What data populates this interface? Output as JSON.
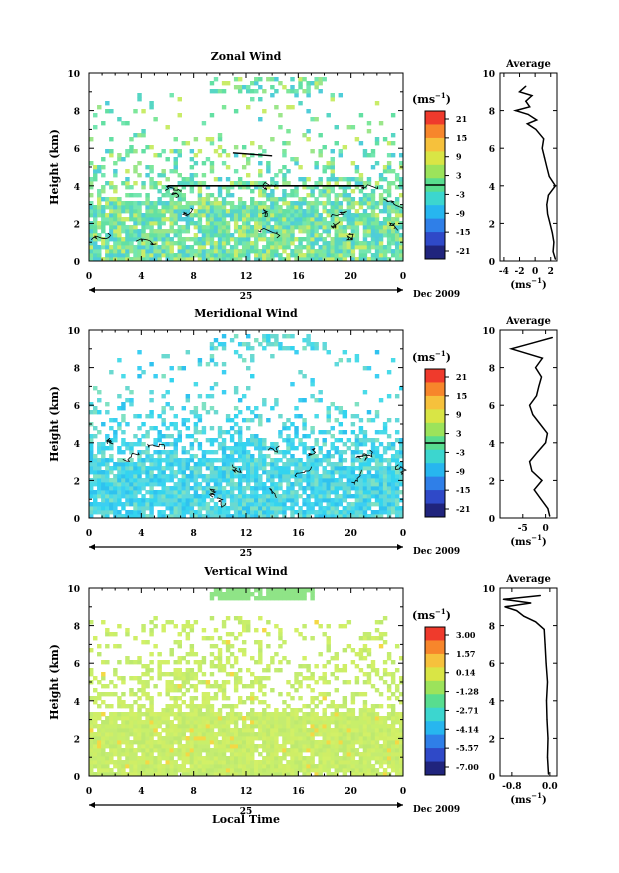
{
  "chart_data": [
    {
      "type": "heatmap",
      "title": "Zonal Wind",
      "ylabel": "Height (km)",
      "unit_label": "(ms",
      "unit_exp": "−1",
      "x_ticks": [
        "0",
        "4",
        "8",
        "12",
        "16",
        "20",
        "0"
      ],
      "day_label": "25",
      "month_label": "Dec 2009",
      "y_ticks": [
        "0",
        "2",
        "4",
        "6",
        "8",
        "10"
      ],
      "xlim": [
        0,
        24
      ],
      "ylim": [
        0,
        10
      ],
      "colorbar_ticks": [
        "21",
        "15",
        "9",
        "3",
        "-3",
        "-9",
        "-15",
        "-21"
      ],
      "zero_contour_height_km": 4.0,
      "average_profile": {
        "title": "Average",
        "xlabel": "(ms",
        "xlabel_exp": "−1",
        "x_ticks": [
          "-4",
          "-2",
          "0",
          "2"
        ],
        "x_tick_values": [
          -4,
          -2,
          0,
          2
        ],
        "xlim": [
          -4.5,
          2.8
        ],
        "y_ticks": [
          "0",
          "2",
          "4",
          "6",
          "8",
          "10"
        ],
        "heights_km": [
          0.1,
          0.5,
          1.0,
          1.5,
          2.0,
          2.5,
          3.0,
          3.5,
          4.0,
          4.5,
          5.0,
          5.5,
          6.0,
          6.5,
          7.0,
          7.3,
          7.5,
          7.8,
          8.0,
          8.2,
          8.5,
          8.8,
          9.0,
          9.3
        ],
        "values": [
          2.6,
          2.3,
          2.4,
          2.2,
          1.9,
          1.6,
          1.5,
          1.7,
          2.6,
          1.8,
          1.5,
          1.2,
          0.9,
          1.1,
          0.1,
          -1.0,
          0.2,
          -0.9,
          -2.5,
          -0.7,
          -1.2,
          -0.4,
          -2.0,
          -1.2
        ]
      }
    },
    {
      "type": "heatmap",
      "title": "Meridional Wind",
      "ylabel": "Height (km)",
      "unit_label": "(ms",
      "unit_exp": "−1",
      "x_ticks": [
        "0",
        "4",
        "8",
        "12",
        "16",
        "20",
        "0"
      ],
      "day_label": "25",
      "month_label": "Dec 2009",
      "y_ticks": [
        "0",
        "2",
        "4",
        "6",
        "8",
        "10"
      ],
      "xlim": [
        0,
        24
      ],
      "ylim": [
        0,
        10
      ],
      "colorbar_ticks": [
        "21",
        "15",
        "9",
        "3",
        "-3",
        "-9",
        "-15",
        "-21"
      ],
      "average_profile": {
        "title": "Average",
        "xlabel": "(ms",
        "xlabel_exp": "−1",
        "x_ticks": [
          "-5",
          "0"
        ],
        "x_tick_values": [
          -5,
          0
        ],
        "xlim": [
          -10,
          2.5
        ],
        "y_ticks": [
          "0",
          "2",
          "4",
          "6",
          "8",
          "10"
        ],
        "heights_km": [
          0.1,
          0.5,
          1.0,
          1.5,
          2.0,
          2.5,
          3.0,
          3.5,
          4.0,
          4.5,
          5.0,
          5.5,
          6.0,
          6.5,
          7.0,
          7.5,
          8.0,
          8.5,
          9.0,
          9.3,
          9.6
        ],
        "values": [
          0.9,
          0.5,
          -1.0,
          -2.5,
          -0.8,
          -3.0,
          -3.5,
          -1.8,
          0.0,
          0.4,
          -1.2,
          -2.8,
          -3.5,
          -2.0,
          -1.5,
          -0.9,
          -2.2,
          -0.7,
          -7.5,
          -3.0,
          1.5
        ]
      }
    },
    {
      "type": "heatmap",
      "title": "Vertical Wind",
      "ylabel": "Height (km)",
      "xlabel": "Local Time",
      "unit_label": "(ms",
      "unit_exp": "−1",
      "x_ticks": [
        "0",
        "4",
        "8",
        "12",
        "16",
        "20",
        "0"
      ],
      "day_label": "25",
      "month_label": "Dec 2009",
      "y_ticks": [
        "0",
        "2",
        "4",
        "6",
        "8",
        "10"
      ],
      "xlim": [
        0,
        24
      ],
      "ylim": [
        0,
        10
      ],
      "colorbar_ticks": [
        "3.00",
        "1.57",
        "0.14",
        "-1.28",
        "-2.71",
        "-4.14",
        "-5.57",
        "-7.00"
      ],
      "average_profile": {
        "title": "Average",
        "xlabel": "(ms",
        "xlabel_exp": "−1",
        "x_ticks": [
          "-0.8",
          "0.0"
        ],
        "x_tick_values": [
          -0.8,
          0.0
        ],
        "xlim": [
          -1.05,
          0.15
        ],
        "y_ticks": [
          "0",
          "2",
          "4",
          "6",
          "8",
          "10"
        ],
        "heights_km": [
          0.1,
          1.0,
          2.0,
          3.0,
          4.0,
          5.0,
          6.0,
          7.0,
          7.8,
          8.2,
          8.5,
          8.8,
          9.0,
          9.2,
          9.4,
          9.6
        ],
        "values": [
          -0.03,
          -0.05,
          -0.04,
          -0.06,
          -0.07,
          -0.05,
          -0.08,
          -0.1,
          -0.12,
          -0.3,
          -0.55,
          -0.7,
          -0.95,
          -0.4,
          -0.98,
          -0.2
        ]
      }
    }
  ]
}
